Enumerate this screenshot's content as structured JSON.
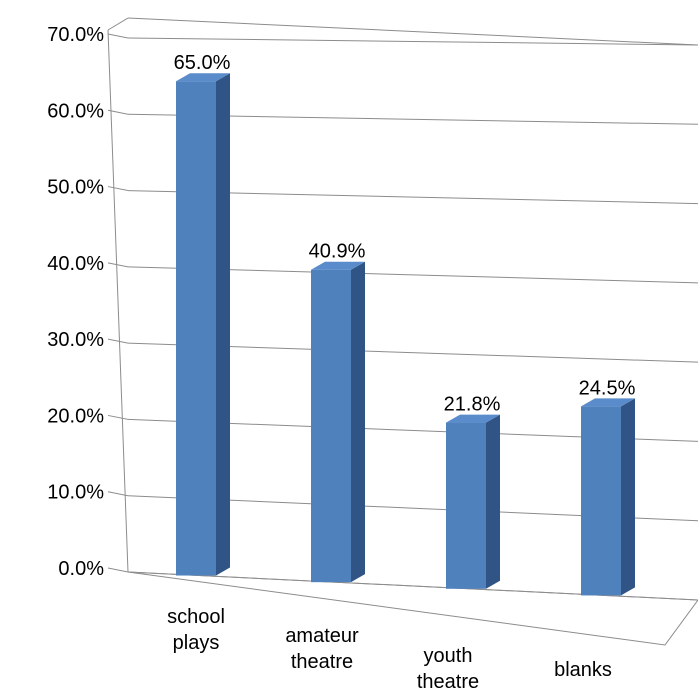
{
  "chart_data": {
    "type": "bar",
    "categories": [
      [
        "school",
        "plays"
      ],
      [
        "amateur",
        "theatre"
      ],
      [
        "youth",
        "theatre"
      ],
      [
        "blanks"
      ]
    ],
    "values": [
      65.0,
      40.9,
      21.8,
      24.5
    ],
    "value_labels": [
      "65.0%",
      "40.9%",
      "21.8%",
      "24.5%"
    ],
    "y_ticks": [
      "0.0%",
      "10.0%",
      "20.0%",
      "30.0%",
      "40.0%",
      "50.0%",
      "60.0%",
      "70.0%"
    ],
    "ylim": [
      0,
      70
    ],
    "title": "",
    "xlabel": "",
    "ylabel": "",
    "grid": true,
    "legend": "none",
    "style": "3d-column",
    "colors": {
      "bar_front": "#4F81BD",
      "bar_side": "#2F5485",
      "bar_top": "#5A8CCB",
      "gridline": "#8C8C8C",
      "text": "#000000"
    }
  }
}
